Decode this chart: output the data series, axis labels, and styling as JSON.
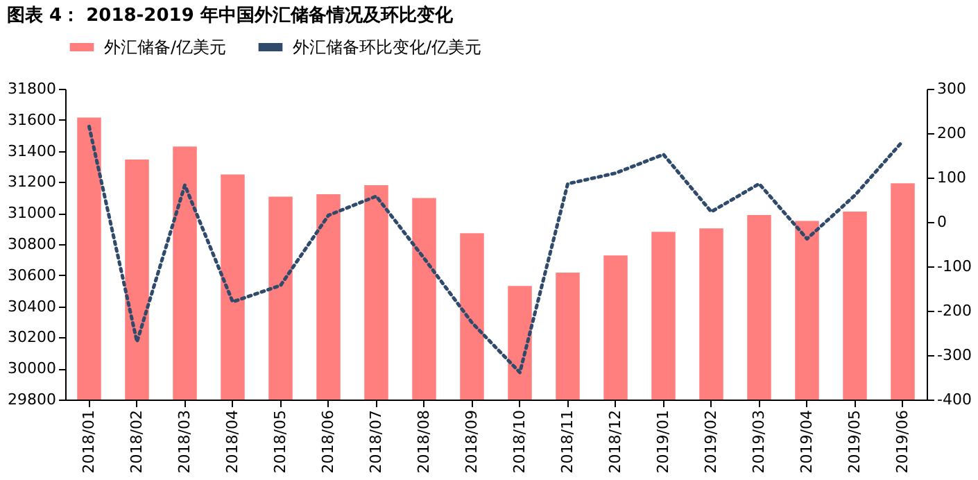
{
  "chart_data": {
    "type": "bar",
    "title": "图表 4： 2018-2019 年中国外汇储备情况及环比变化",
    "categories": [
      "2018/01",
      "2018/02",
      "2018/03",
      "2018/04",
      "2018/05",
      "2018/06",
      "2018/07",
      "2018/08",
      "2018/09",
      "2018/10",
      "2018/11",
      "2018/12",
      "2019/01",
      "2019/02",
      "2019/03",
      "2019/04",
      "2019/05",
      "2019/06"
    ],
    "series": [
      {
        "name": "外汇储备/亿美元",
        "color": "#ff7f7f",
        "values": [
          31615,
          31345,
          31428,
          31249,
          31106,
          31121,
          31179,
          31097,
          30870,
          30531,
          30617,
          30727,
          30879,
          30902,
          30988,
          30950,
          31010,
          31192
        ]
      },
      {
        "name": "外汇储备环比变化/亿美元",
        "color": "#2f4a6b",
        "type": "line",
        "axis": "y2",
        "line_style": "dotted",
        "values": [
          215,
          -270,
          83,
          -180,
          -143,
          15,
          58,
          -82,
          -227,
          -339,
          86,
          110,
          152,
          23,
          86,
          -38,
          60,
          182
        ]
      }
    ],
    "ylim": [
      29800,
      31800
    ],
    "yticks": [
      29800,
      30000,
      30200,
      30400,
      30600,
      30800,
      31000,
      31200,
      31400,
      31600,
      31800
    ],
    "y2lim": [
      -400,
      300
    ],
    "y2ticks": [
      -400,
      -300,
      -200,
      -100,
      0,
      100,
      200,
      300
    ],
    "legend": "top",
    "grid": false,
    "marker": "none"
  }
}
